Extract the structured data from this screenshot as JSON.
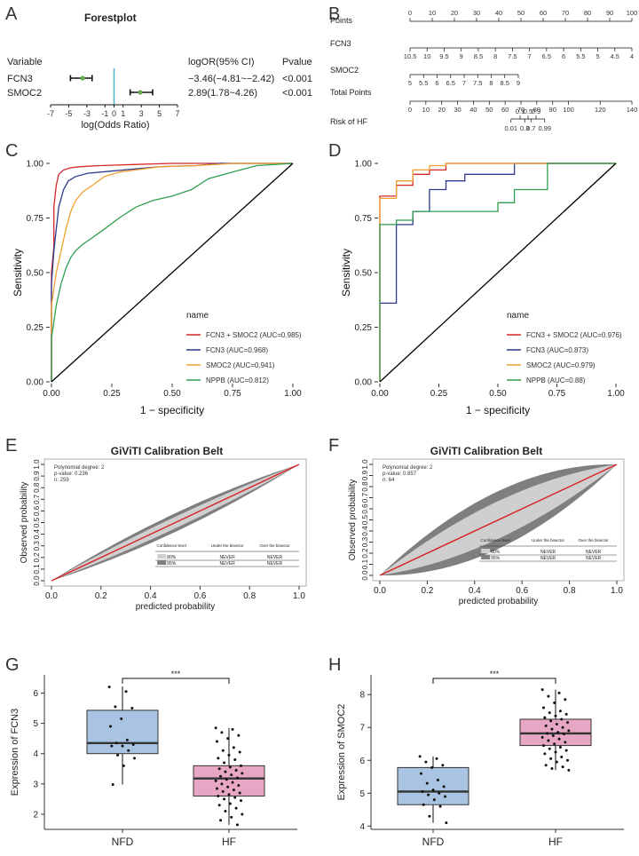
{
  "panels": {
    "A": "A",
    "B": "B",
    "C": "C",
    "D": "D",
    "E": "E",
    "F": "F",
    "G": "G",
    "H": "H"
  },
  "chart_data": [
    {
      "panel": "A",
      "type": "forest",
      "title": "Forestplot",
      "header": {
        "variable": "Variable",
        "or": "logOR(95% CI)",
        "p": "Pvalue"
      },
      "rows": [
        {
          "name": "FCN3",
          "est": -3.46,
          "lo": -4.81,
          "hi": -2.42,
          "text": "−3.46(−4.81~−2.42)",
          "p": "<0.001"
        },
        {
          "name": "SMOC2",
          "est": 2.89,
          "lo": 1.78,
          "hi": 4.26,
          "text": "2.89(1.78~4.26)",
          "p": "<0.001"
        }
      ],
      "xlim": [
        -7,
        7
      ],
      "xticks": [
        -7,
        -5,
        -3,
        -1,
        0,
        1,
        3,
        5,
        7
      ],
      "xlabel": "log(Odds Ratio)"
    },
    {
      "panel": "B",
      "type": "nomogram",
      "rows": [
        {
          "name": "Points",
          "ticks": [
            {
              "v": 0,
              "t": "0"
            },
            {
              "v": 10,
              "t": "10"
            },
            {
              "v": 20,
              "t": "20"
            },
            {
              "v": 30,
              "t": "30"
            },
            {
              "v": 40,
              "t": "40"
            },
            {
              "v": 50,
              "t": "50"
            },
            {
              "v": 60,
              "t": "60"
            },
            {
              "v": 70,
              "t": "70"
            },
            {
              "v": 80,
              "t": "80"
            },
            {
              "v": 90,
              "t": "90"
            },
            {
              "v": 100,
              "t": "100"
            }
          ]
        },
        {
          "name": "FCN3",
          "ticks": [
            {
              "v": 0,
              "t": "10.5"
            },
            {
              "v": 7.692,
              "t": "10"
            },
            {
              "v": 15.38,
              "t": "9.5"
            },
            {
              "v": 23.08,
              "t": "9"
            },
            {
              "v": 30.77,
              "t": "8.5"
            },
            {
              "v": 38.46,
              "t": "8"
            },
            {
              "v": 46.15,
              "t": "7.5"
            },
            {
              "v": 53.85,
              "t": "7"
            },
            {
              "v": 61.54,
              "t": "6.5"
            },
            {
              "v": 69.23,
              "t": "6"
            },
            {
              "v": 76.92,
              "t": "5.5"
            },
            {
              "v": 84.62,
              "t": "5"
            },
            {
              "v": 92.31,
              "t": "4.5"
            },
            {
              "v": 100,
              "t": "4"
            }
          ]
        },
        {
          "name": "SMOC2",
          "ticks": [
            {
              "v": 0,
              "t": "5"
            },
            {
              "v": 6.1,
              "t": "5.5"
            },
            {
              "v": 12.2,
              "t": "6"
            },
            {
              "v": 18.3,
              "t": "6.5"
            },
            {
              "v": 24.4,
              "t": "7"
            },
            {
              "v": 30.5,
              "t": "7.5"
            },
            {
              "v": 36.6,
              "t": "8"
            },
            {
              "v": 42.7,
              "t": "8.5"
            },
            {
              "v": 48.8,
              "t": "9"
            }
          ]
        },
        {
          "name": "Total Points",
          "ticks": [
            {
              "v": 0,
              "t": "0"
            },
            {
              "v": 7.14,
              "t": "10"
            },
            {
              "v": 14.29,
              "t": "20"
            },
            {
              "v": 21.43,
              "t": "30"
            },
            {
              "v": 28.57,
              "t": "40"
            },
            {
              "v": 35.71,
              "t": "50"
            },
            {
              "v": 42.86,
              "t": "60"
            },
            {
              "v": 50,
              "t": "70"
            },
            {
              "v": 57.14,
              "t": "80"
            },
            {
              "v": 64.29,
              "t": "90"
            },
            {
              "v": 71.43,
              "t": "100"
            },
            {
              "v": 85.71,
              "t": "120"
            },
            {
              "v": 100,
              "t": "140"
            }
          ]
        },
        {
          "name": "Risk of HF",
          "ticks_top": [
            {
              "v": 49.6,
              "t": "0.1"
            },
            {
              "v": 53.2,
              "t": "0.5"
            },
            {
              "v": 56.8,
              "t": "0.9"
            }
          ],
          "ticks_bottom": [
            {
              "v": 45.5,
              "t": "0.01"
            },
            {
              "v": 51.7,
              "t": "0.3"
            },
            {
              "v": 54.5,
              "t": "0.7"
            },
            {
              "v": 60.7,
              "t": "0.99"
            }
          ]
        }
      ]
    },
    {
      "panel": "C",
      "type": "line",
      "title": "",
      "xlabel": "1 − specificity",
      "ylabel": "Sensitivity",
      "xlim": [
        0,
        1
      ],
      "ylim": [
        0,
        1
      ],
      "ticks": [
        "0.00",
        "0.25",
        "0.50",
        "0.75",
        "1.00"
      ],
      "legend_title": "name",
      "series": [
        {
          "name": "FCN3 + SMOC2 (AUC=0.985)",
          "color": "#d62728",
          "x": [
            0,
            0,
            0.01,
            0.01,
            0.02,
            0.03,
            0.05,
            0.08,
            0.12,
            0.2,
            0.35,
            0.5,
            1
          ],
          "y": [
            0,
            0.5,
            0.62,
            0.8,
            0.9,
            0.95,
            0.97,
            0.98,
            0.985,
            0.99,
            0.995,
            1,
            1
          ]
        },
        {
          "name": "FCN3 (AUC=0.968)",
          "color": "#2b3a8c",
          "x": [
            0,
            0,
            0.01,
            0.02,
            0.03,
            0.05,
            0.07,
            0.1,
            0.15,
            0.3,
            0.45,
            0.6,
            0.7,
            1
          ],
          "y": [
            0,
            0.45,
            0.6,
            0.7,
            0.8,
            0.88,
            0.92,
            0.94,
            0.955,
            0.97,
            0.985,
            0.99,
            1,
            1
          ]
        },
        {
          "name": "SMOC2 (AUC=0.941)",
          "color": "#f0a030",
          "x": [
            0,
            0,
            0.02,
            0.04,
            0.06,
            0.08,
            0.1,
            0.13,
            0.17,
            0.22,
            0.28,
            0.35,
            0.45,
            0.6,
            0.75,
            1
          ],
          "y": [
            0,
            0.35,
            0.5,
            0.6,
            0.7,
            0.78,
            0.83,
            0.87,
            0.9,
            0.94,
            0.96,
            0.97,
            0.985,
            0.99,
            1,
            1
          ]
        },
        {
          "name": "NPPB (AUC=0.812)",
          "color": "#2e9e4f",
          "x": [
            0,
            0,
            0.02,
            0.04,
            0.06,
            0.08,
            0.1,
            0.13,
            0.17,
            0.22,
            0.28,
            0.35,
            0.42,
            0.5,
            0.58,
            0.65,
            0.75,
            0.85,
            1
          ],
          "y": [
            0,
            0.2,
            0.35,
            0.45,
            0.52,
            0.57,
            0.6,
            0.63,
            0.66,
            0.7,
            0.75,
            0.8,
            0.83,
            0.85,
            0.88,
            0.93,
            0.96,
            0.99,
            1
          ]
        },
        {
          "name": "reference",
          "color": "#000000",
          "x": [
            0,
            1
          ],
          "y": [
            0,
            1
          ]
        }
      ]
    },
    {
      "panel": "D",
      "type": "line",
      "xlabel": "1 − specificity",
      "ylabel": "Sensitivity",
      "xlim": [
        0,
        1
      ],
      "ylim": [
        0,
        1
      ],
      "ticks": [
        "0.00",
        "0.25",
        "0.50",
        "0.75",
        "1.00"
      ],
      "legend_title": "name",
      "series": [
        {
          "name": "FCN3 + SMOC2 (AUC=0.976)",
          "color": "#d62728",
          "x": [
            0,
            0,
            0.07,
            0.07,
            0.14,
            0.14,
            0.21,
            0.21,
            0.28,
            0.28,
            1
          ],
          "y": [
            0,
            0.85,
            0.85,
            0.9,
            0.9,
            0.95,
            0.95,
            0.97,
            0.97,
            1,
            1
          ]
        },
        {
          "name": "FCN3 (AUC=0.873)",
          "color": "#2b3a8c",
          "x": [
            0,
            0.07,
            0.07,
            0.14,
            0.14,
            0.21,
            0.21,
            0.28,
            0.28,
            0.36,
            0.36,
            0.57,
            0.57,
            1
          ],
          "y": [
            0.36,
            0.36,
            0.72,
            0.72,
            0.78,
            0.78,
            0.88,
            0.88,
            0.92,
            0.92,
            0.95,
            0.95,
            1,
            1
          ]
        },
        {
          "name": "SMOC2 (AUC=0.979)",
          "color": "#f0a030",
          "x": [
            0,
            0,
            0.07,
            0.07,
            0.14,
            0.14,
            0.21,
            0.21,
            0.28,
            0.28,
            1
          ],
          "y": [
            0,
            0.84,
            0.84,
            0.92,
            0.92,
            0.97,
            0.97,
            0.99,
            0.99,
            1,
            1
          ]
        },
        {
          "name": "NPPB (AUC=0.88)",
          "color": "#2e9e4f",
          "x": [
            0,
            0,
            0.07,
            0.07,
            0.14,
            0.14,
            0.5,
            0.5,
            0.57,
            0.57,
            0.71,
            0.71,
            1
          ],
          "y": [
            0,
            0.72,
            0.72,
            0.74,
            0.74,
            0.78,
            0.78,
            0.82,
            0.82,
            0.88,
            0.88,
            1,
            1
          ]
        },
        {
          "name": "reference",
          "color": "#000000",
          "x": [
            0,
            1
          ],
          "y": [
            0,
            1
          ]
        }
      ]
    },
    {
      "panel": "E",
      "type": "calibration-belt",
      "title": "GiViTI Calibration Belt",
      "xlabel": "predicted probability",
      "ylabel": "Observed probability",
      "xticks": [
        "0.0",
        "0.2",
        "0.4",
        "0.6",
        "0.8",
        "1.0"
      ],
      "yticks": [
        "0.0",
        "0.1",
        "0.2",
        "0.3",
        "0.4",
        "0.5",
        "0.6",
        "0.7",
        "0.8",
        "0.9",
        "1.0"
      ],
      "info": [
        "Polynomial degree: 2",
        "p-value: 0.236",
        "n: 259"
      ],
      "belt80": 0.05,
      "belt95": 0.08,
      "table": {
        "header": [
          "Confidence level",
          "Under the bisector",
          "Over the bisector"
        ],
        "rows": [
          [
            "80%",
            "NEVER",
            "NEVER"
          ],
          [
            "95%",
            "NEVER",
            "NEVER"
          ]
        ]
      }
    },
    {
      "panel": "F",
      "type": "calibration-belt",
      "title": "GiViTI Calibration Belt",
      "xlabel": "predicted probability",
      "ylabel": "Observed probability",
      "xticks": [
        "0.0",
        "0.2",
        "0.4",
        "0.6",
        "0.8",
        "1.0"
      ],
      "yticks": [
        "0.0",
        "0.1",
        "0.2",
        "0.3",
        "0.4",
        "0.5",
        "0.6",
        "0.7",
        "0.8",
        "0.9",
        "1.0"
      ],
      "info": [
        "Polynomial degree: 2",
        "p-value: 0.857",
        "n: 64"
      ],
      "belt80": 0.17,
      "belt95": 0.26,
      "table": {
        "header": [
          "Confidence level",
          "Under the bisector",
          "Over the bisector"
        ],
        "rows": [
          [
            "80%",
            "NEVER",
            "NEVER"
          ],
          [
            "95%",
            "NEVER",
            "NEVER"
          ]
        ]
      }
    },
    {
      "panel": "G",
      "type": "box",
      "ylabel": "Expression of  FCN3",
      "categories": [
        "NFD",
        "HF"
      ],
      "ylim": [
        1.5,
        6.6
      ],
      "yticks": [
        2,
        3,
        4,
        5,
        6
      ],
      "significance": "***",
      "groups": [
        {
          "name": "NFD",
          "color": "#a9c4e2",
          "q1": 4.0,
          "median": 4.35,
          "q3": 5.43,
          "min": 2.98,
          "max": 6.22,
          "points": [
            6.2,
            6.05,
            5.55,
            5.5,
            5.15,
            4.9,
            4.45,
            4.35,
            4.3,
            4.25,
            4.25,
            4.1,
            3.95,
            3.85,
            3.6,
            2.98
          ]
        },
        {
          "name": "HF",
          "color": "#e7a6c3",
          "q1": 2.6,
          "median": 3.18,
          "q3": 3.6,
          "min": 1.65,
          "max": 4.85,
          "points": [
            4.85,
            4.8,
            4.7,
            4.6,
            4.5,
            4.4,
            4.2,
            4.1,
            4.05,
            3.95,
            3.85,
            3.8,
            3.7,
            3.6,
            3.55,
            3.5,
            3.45,
            3.4,
            3.35,
            3.3,
            3.25,
            3.2,
            3.15,
            3.1,
            3.05,
            3.0,
            2.95,
            2.9,
            2.85,
            2.8,
            2.75,
            2.7,
            2.65,
            2.6,
            2.55,
            2.5,
            2.45,
            2.35,
            2.3,
            2.2,
            2.1,
            2.0,
            1.9,
            1.8,
            1.65
          ]
        }
      ]
    },
    {
      "panel": "H",
      "type": "box",
      "ylabel": "Expression of  SMOC2",
      "categories": [
        "NFD",
        "HF"
      ],
      "ylim": [
        3.9,
        8.6
      ],
      "yticks": [
        4,
        5,
        6,
        7,
        8
      ],
      "significance": "***",
      "groups": [
        {
          "name": "NFD",
          "color": "#a9c4e2",
          "q1": 4.65,
          "median": 5.05,
          "q3": 5.78,
          "min": 4.1,
          "max": 6.12,
          "points": [
            6.12,
            6.05,
            5.95,
            5.85,
            5.78,
            5.6,
            5.4,
            5.3,
            5.2,
            5.1,
            5.05,
            5.0,
            4.95,
            4.9,
            4.8,
            4.65,
            4.6,
            4.3,
            4.1
          ]
        },
        {
          "name": "HF",
          "color": "#e7a6c3",
          "q1": 6.45,
          "median": 6.82,
          "q3": 7.25,
          "min": 5.7,
          "max": 8.15,
          "points": [
            8.15,
            8.05,
            7.95,
            7.85,
            7.75,
            7.6,
            7.5,
            7.45,
            7.4,
            7.35,
            7.3,
            7.25,
            7.2,
            7.15,
            7.1,
            7.05,
            7.0,
            6.95,
            6.9,
            6.85,
            6.82,
            6.8,
            6.75,
            6.7,
            6.65,
            6.6,
            6.55,
            6.5,
            6.45,
            6.4,
            6.35,
            6.3,
            6.25,
            6.2,
            6.1,
            6.05,
            6.0,
            5.95,
            5.85,
            5.8,
            5.75,
            5.7
          ]
        }
      ]
    }
  ]
}
